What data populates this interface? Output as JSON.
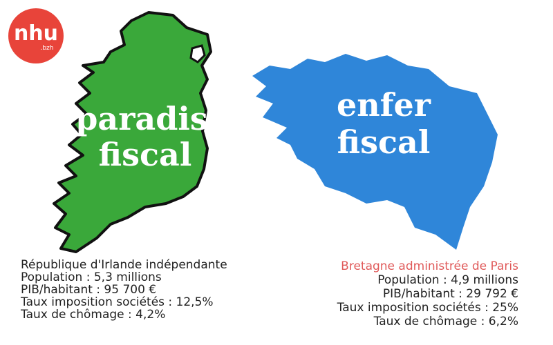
{
  "logo": {
    "name": "nhu",
    "suffix": ".bzh"
  },
  "left": {
    "title_lines": [
      "paradis",
      "fiscal"
    ],
    "lines": [
      "République d'Irlande indépendante",
      "Population : 5,3 millions",
      "PIB/habitant : 95 700 €",
      "Taux imposition sociétés : 12,5%",
      "Taux de chômage : 4,2%"
    ]
  },
  "right": {
    "title_lines": [
      "enfer",
      "fiscal"
    ],
    "heading": "Bretagne administrée de Paris",
    "lines": [
      "Population : 4,9 millions",
      "PIB/habitant : 29 792 €",
      "Taux imposition sociétés : 25%",
      "Taux de chômage : 6,2%"
    ]
  }
}
